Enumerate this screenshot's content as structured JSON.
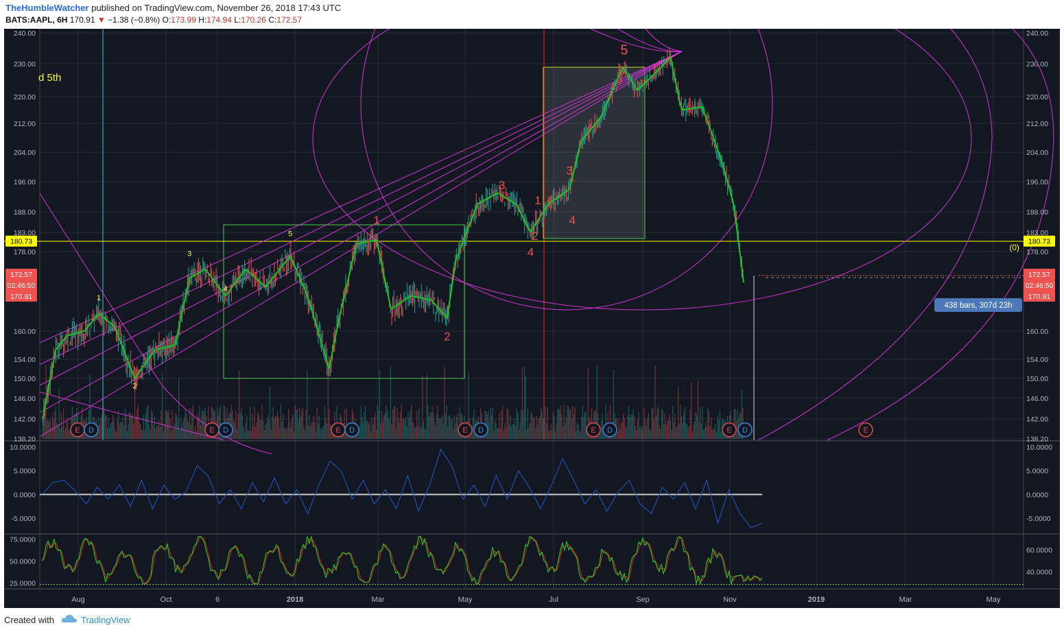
{
  "header": {
    "author": "TheHumbleWatcher",
    "published_text": "published on TradingView.com, November 26, 2018 17:43 UTC",
    "symbol": "BATS:AAPL, 6H",
    "last": "170.91",
    "change_arrow": "▼",
    "change": "−1.38 (−0.8%)",
    "o_label": "O:",
    "o_value": "173.99",
    "h_label": "H:",
    "h_value": "174.94",
    "l_label": "L:",
    "l_value": "170.26",
    "c_label": "C:",
    "c_value": "172.57"
  },
  "colors": {
    "background": "#131722",
    "grid": "#2a2e39",
    "fib_magenta": "#d633d6",
    "zigzag_green": "#22c122",
    "box_green": "#4cd14c",
    "box_yellow": "#d4d42a",
    "horizontal_yellow": "#ffff00",
    "wave_red": "#f05050",
    "wave_yellow": "#ffff44",
    "candle_up": "#26a69a",
    "candle_down": "#ef5350",
    "price_badge_red": "#ef5350",
    "osc_blue": "#1e50b4",
    "stoch_green": "#22dd22",
    "stoch_red": "#dd2222"
  },
  "chart_data": {
    "type": "candlestick",
    "symbol": "BATS:AAPL",
    "interval": "6H",
    "price_axis": [
      "240.00",
      "230.00",
      "220.00",
      "212.00",
      "204.00",
      "196.00",
      "188.00",
      "183.00",
      "178.00",
      "160.00",
      "154.00",
      "150.00",
      "146.00",
      "142.00",
      "138.20"
    ],
    "price_axis_values": [
      240,
      230,
      220,
      212,
      204,
      196,
      188,
      183,
      178,
      160,
      154,
      150,
      146,
      142,
      138.2
    ],
    "ylim": [
      138.2,
      240
    ],
    "horizontal_level": "180.73",
    "horizontal_level_value": 180.73,
    "horizontal_level_tag": "(0)",
    "last_price_badge": "172.57",
    "last_price_value": 172.57,
    "countdown_badge": "02:46:50",
    "current_badge": "170.91",
    "measure_label": "438 bars, 307d 23h",
    "partial_label": "d 5th",
    "time_axis": [
      "Aug",
      "Oct",
      "6",
      "2018",
      "Mar",
      "May",
      "Jul",
      "Sep",
      "Nov",
      "2019",
      "Mar",
      "May"
    ],
    "close_path": [
      [
        "2017-07-24",
        142
      ],
      [
        "2017-08-02",
        156
      ],
      [
        "2017-08-10",
        159
      ],
      [
        "2017-08-22",
        160
      ],
      [
        "2017-09-01",
        164
      ],
      [
        "2017-09-12",
        161
      ],
      [
        "2017-09-26",
        150
      ],
      [
        "2017-10-10",
        156
      ],
      [
        "2017-10-24",
        157
      ],
      [
        "2017-11-03",
        172
      ],
      [
        "2017-11-14",
        174
      ],
      [
        "2017-11-28",
        168
      ],
      [
        "2017-12-12",
        174
      ],
      [
        "2017-12-26",
        170
      ],
      [
        "2018-01-12",
        177
      ],
      [
        "2018-01-24",
        168
      ],
      [
        "2018-02-08",
        152
      ],
      [
        "2018-02-15",
        163
      ],
      [
        "2018-02-27",
        180
      ],
      [
        "2018-03-13",
        181
      ],
      [
        "2018-03-23",
        165
      ],
      [
        "2018-04-06",
        168
      ],
      [
        "2018-04-20",
        167
      ],
      [
        "2018-05-01",
        163
      ],
      [
        "2018-05-07",
        176
      ],
      [
        "2018-05-22",
        190
      ],
      [
        "2018-06-05",
        193
      ],
      [
        "2018-06-18",
        190
      ],
      [
        "2018-06-28",
        183
      ],
      [
        "2018-07-10",
        190
      ],
      [
        "2018-07-25",
        194
      ],
      [
        "2018-08-02",
        207
      ],
      [
        "2018-08-16",
        214
      ],
      [
        "2018-08-31",
        229
      ],
      [
        "2018-09-10",
        222
      ],
      [
        "2018-09-20",
        226
      ],
      [
        "2018-10-03",
        232
      ],
      [
        "2018-10-11",
        216
      ],
      [
        "2018-10-25",
        217
      ],
      [
        "2018-11-02",
        208
      ],
      [
        "2018-11-09",
        200
      ],
      [
        "2018-11-16",
        190
      ],
      [
        "2018-11-23",
        171
      ]
    ],
    "wave_labels_red": [
      {
        "text": "1",
        "date": "2018-03-13",
        "price": 185
      },
      {
        "text": "2",
        "date": "2018-05-01",
        "price": 158
      },
      {
        "text": "3",
        "date": "2018-06-08",
        "price": 194
      },
      {
        "text": "4",
        "date": "2018-06-28",
        "price": 177
      },
      {
        "text": "2",
        "date": "2018-07-01",
        "price": 181
      },
      {
        "text": "1",
        "date": "2018-07-03",
        "price": 190
      },
      {
        "text": "3",
        "date": "2018-07-25",
        "price": 198
      },
      {
        "text": "4",
        "date": "2018-07-27",
        "price": 185
      },
      {
        "text": "5",
        "date": "2018-09-01",
        "price": 233
      }
    ],
    "wave_labels_yellow": [
      {
        "text": "1",
        "date": "2017-09-01",
        "price": 167
      },
      {
        "text": "2",
        "date": "2017-09-26",
        "price": 148
      },
      {
        "text": "3",
        "date": "2017-11-03",
        "price": 177
      },
      {
        "text": "4",
        "date": "2017-11-28",
        "price": 169
      },
      {
        "text": "5",
        "date": "2018-01-12",
        "price": 182
      }
    ],
    "event_markers": [
      "E",
      "D",
      "E",
      "D",
      "E",
      "D",
      "E",
      "D",
      "E",
      "D",
      "E",
      "D",
      "E"
    ],
    "oscillator": {
      "axis": [
        "10.0000",
        "5.0000",
        "0.0000",
        "-5.0000"
      ],
      "axis_values": [
        10,
        5,
        0,
        -5
      ],
      "ylim": [
        -8,
        11
      ],
      "values": [
        0,
        2.5,
        3,
        0.8,
        -2,
        1.5,
        -1,
        2,
        -2.5,
        3,
        -3,
        2,
        -1,
        0.5,
        6,
        4,
        -2,
        1,
        -3,
        2.5,
        -1.5,
        3.5,
        -2,
        1,
        -4,
        2,
        7,
        5,
        -1,
        3,
        -2,
        1,
        -3,
        4,
        -3.5,
        2,
        9.5,
        6,
        -1,
        2,
        -2.5,
        4,
        -1,
        5,
        1.5,
        -3,
        2,
        7.5,
        3,
        -2,
        1,
        -3.5,
        0.5,
        3,
        -2,
        -4,
        1.5,
        -1,
        2.5,
        -3,
        3,
        -6,
        1,
        -4,
        -7,
        -6
      ]
    },
    "stochastic": {
      "left_axis": [
        "75.0000",
        "50.0000",
        "25.0000"
      ],
      "left_axis_values": [
        75,
        50,
        25
      ],
      "right_axis": [
        "60.0000",
        "40.0000"
      ],
      "right_axis_values": [
        60,
        40
      ],
      "ylim": [
        20,
        80
      ]
    }
  },
  "footer": {
    "created_with": "Created with",
    "brand": "TradingView"
  }
}
